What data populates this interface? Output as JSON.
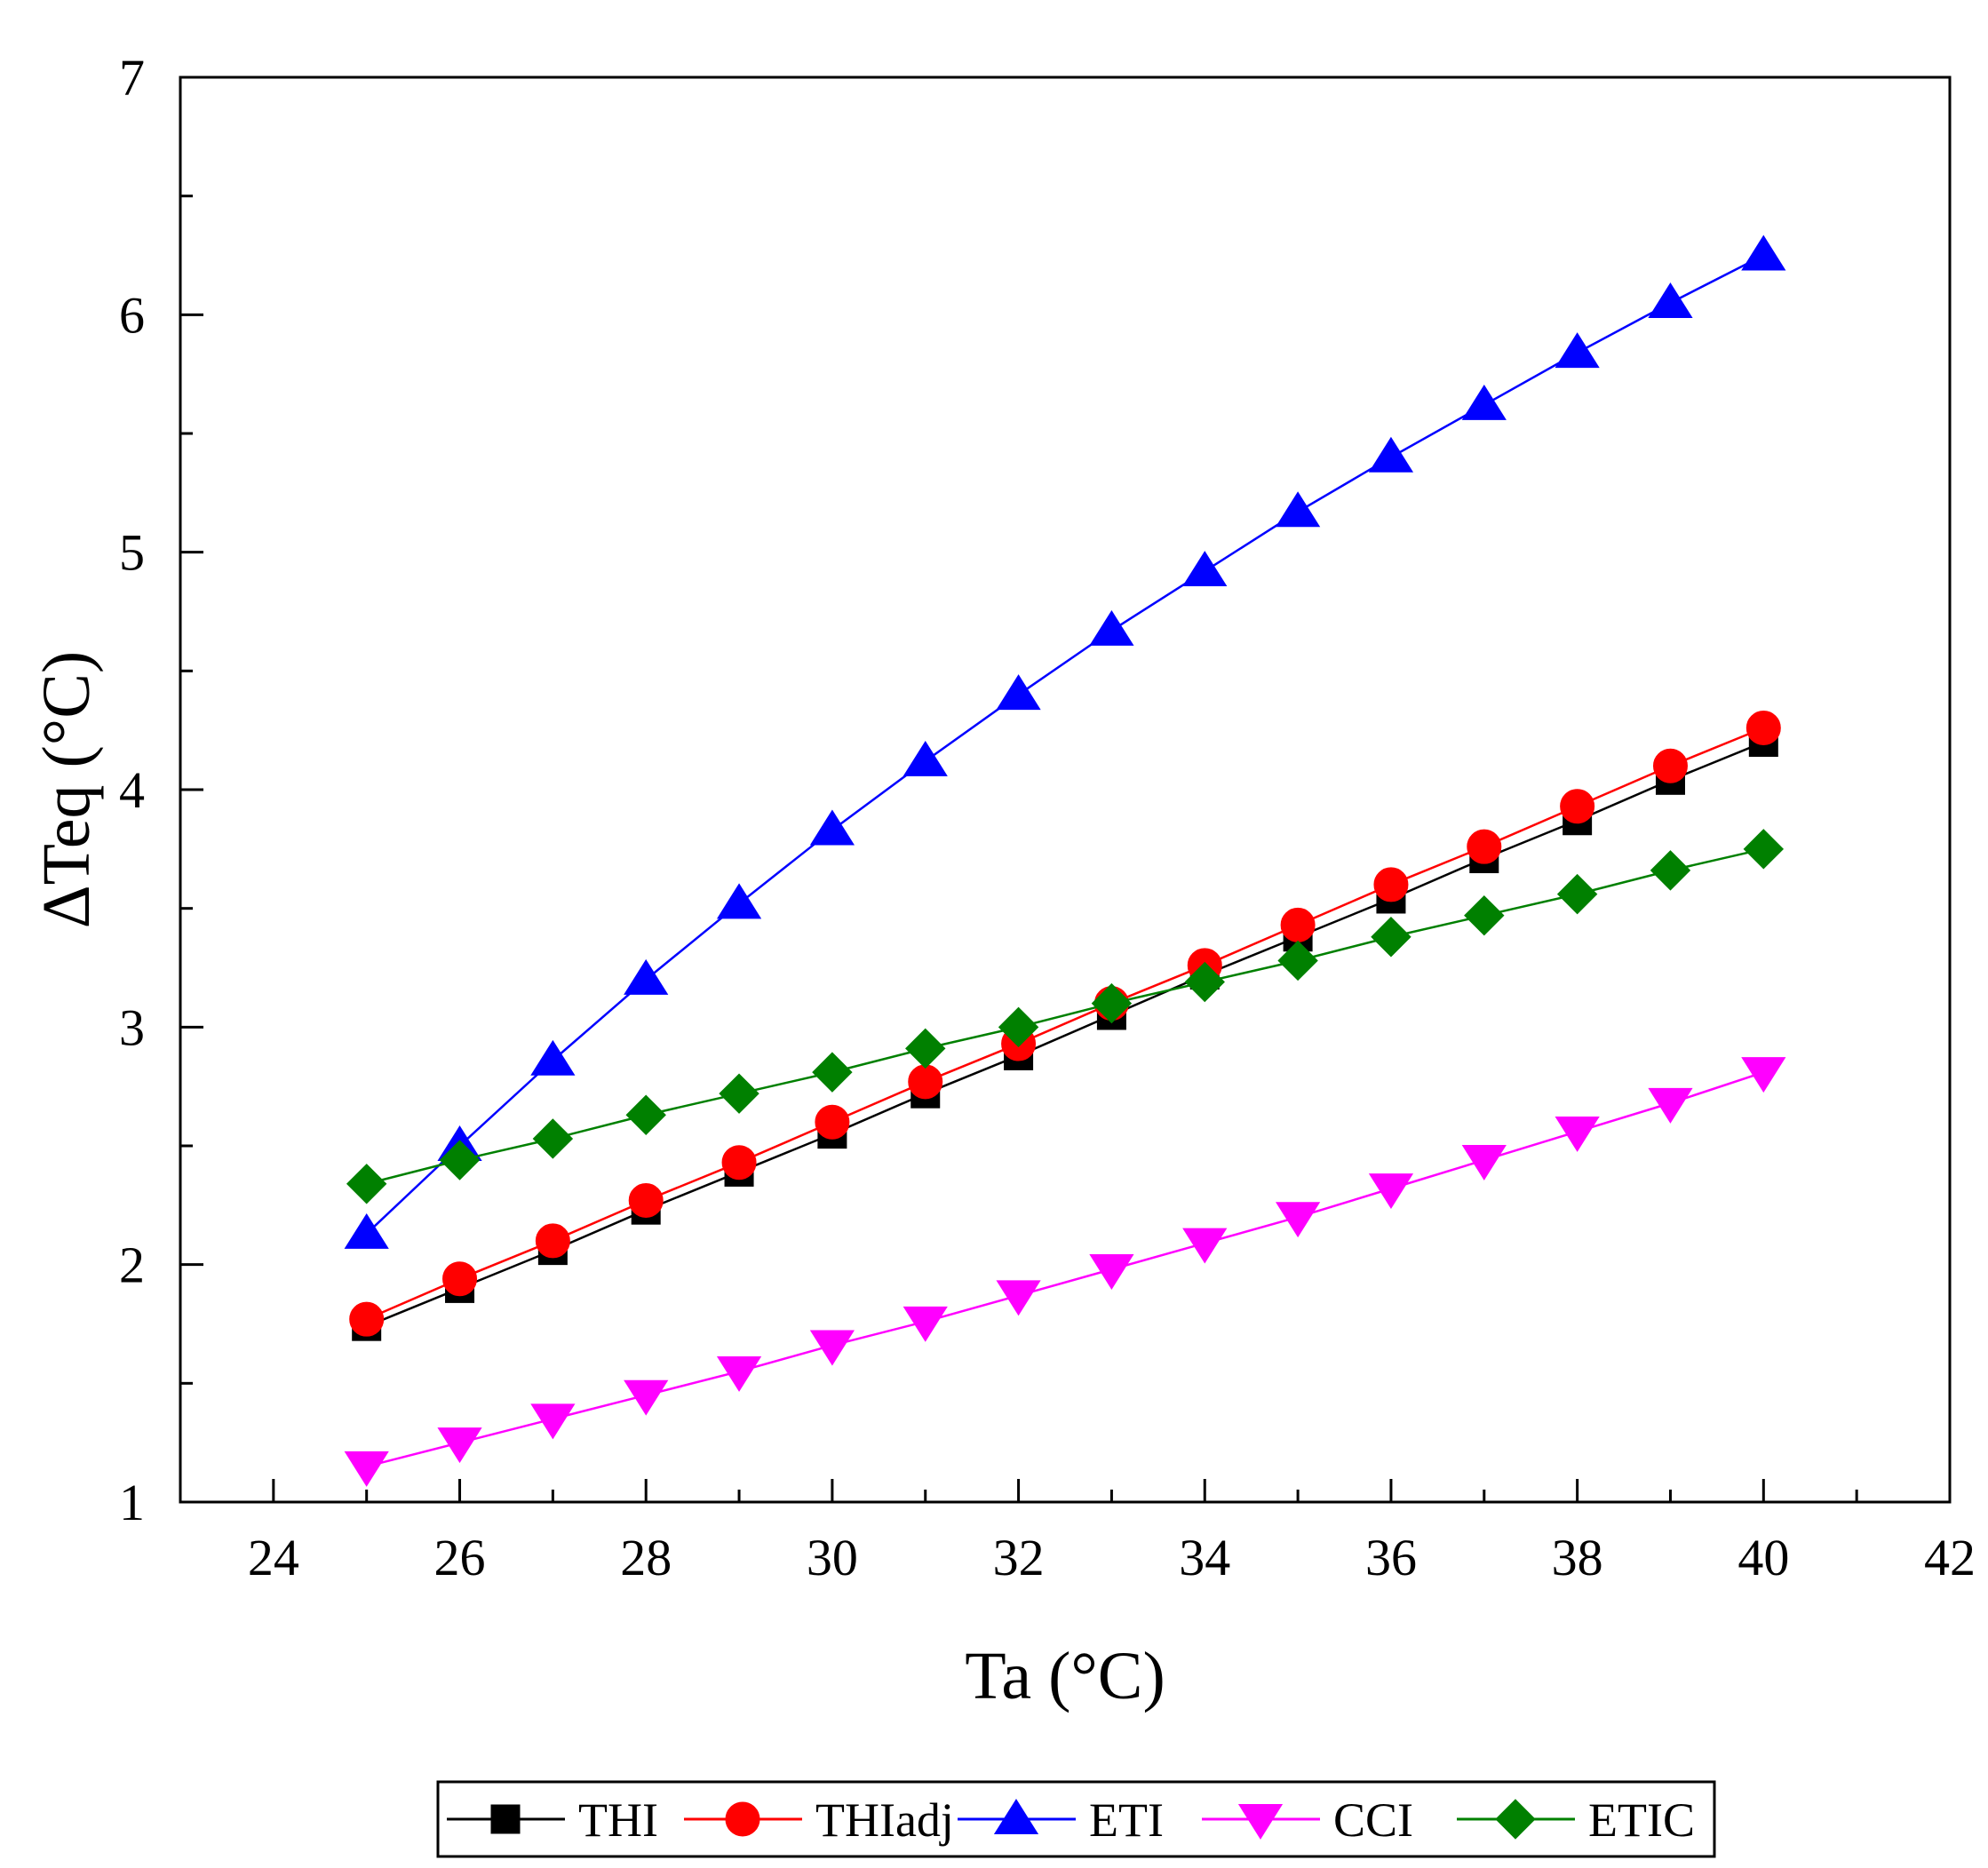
{
  "chart_data": {
    "type": "line",
    "title": "",
    "xlabel": "Ta (°C)",
    "ylabel": "ΔTeq (°C)",
    "xlim": [
      23,
      42
    ],
    "ylim": [
      1,
      7
    ],
    "x_ticks": [
      "24",
      "26",
      "28",
      "30",
      "32",
      "34",
      "36",
      "38",
      "40",
      "42"
    ],
    "y_ticks": [
      "1",
      "2",
      "3",
      "4",
      "5",
      "6",
      "7"
    ],
    "grid": false,
    "legend_position": "bottom",
    "x": [
      25,
      26,
      27,
      28,
      29,
      30,
      31,
      32,
      33,
      34,
      35,
      36,
      37,
      38,
      39,
      40
    ],
    "series": [
      {
        "name": "THI",
        "color": "#000000",
        "marker": "square",
        "values": [
          1.74,
          1.9,
          2.06,
          2.23,
          2.39,
          2.55,
          2.72,
          2.88,
          3.05,
          3.22,
          3.38,
          3.54,
          3.71,
          3.87,
          4.04,
          4.2
        ]
      },
      {
        "name": "THIadj",
        "color": "#ff0000",
        "marker": "circle",
        "values": [
          1.77,
          1.94,
          2.1,
          2.27,
          2.43,
          2.6,
          2.77,
          2.93,
          3.1,
          3.26,
          3.43,
          3.6,
          3.76,
          3.93,
          4.1,
          4.26
        ]
      },
      {
        "name": "ETI",
        "color": "#0000ff",
        "marker": "triangle-up",
        "values": [
          2.13,
          2.5,
          2.86,
          3.2,
          3.52,
          3.83,
          4.12,
          4.4,
          4.67,
          4.92,
          5.17,
          5.4,
          5.62,
          5.84,
          6.05,
          6.25
        ]
      },
      {
        "name": "CCI",
        "color": "#ff00ff",
        "marker": "triangle-down",
        "values": [
          1.15,
          1.25,
          1.35,
          1.45,
          1.55,
          1.66,
          1.76,
          1.87,
          1.98,
          2.09,
          2.2,
          2.32,
          2.44,
          2.56,
          2.68,
          2.81
        ]
      },
      {
        "name": "ETIC",
        "color": "#008000",
        "marker": "diamond",
        "values": [
          2.34,
          2.44,
          2.53,
          2.63,
          2.72,
          2.81,
          2.91,
          3.0,
          3.1,
          3.19,
          3.28,
          3.38,
          3.47,
          3.56,
          3.66,
          3.75
        ]
      }
    ]
  }
}
